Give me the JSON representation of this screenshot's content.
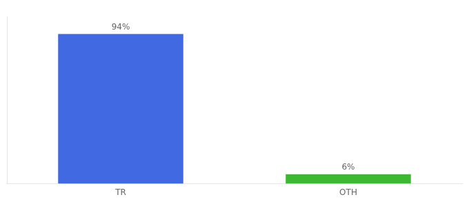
{
  "chart_data": {
    "type": "bar",
    "categories": [
      "TR",
      "OTH"
    ],
    "values": [
      94,
      6
    ],
    "value_labels": [
      "94%",
      "6%"
    ],
    "colors": [
      "#4169e1",
      "#3cb832"
    ],
    "ylim": [
      0,
      105
    ],
    "data_labels": true,
    "tick_labels": "x",
    "grid": false
  }
}
